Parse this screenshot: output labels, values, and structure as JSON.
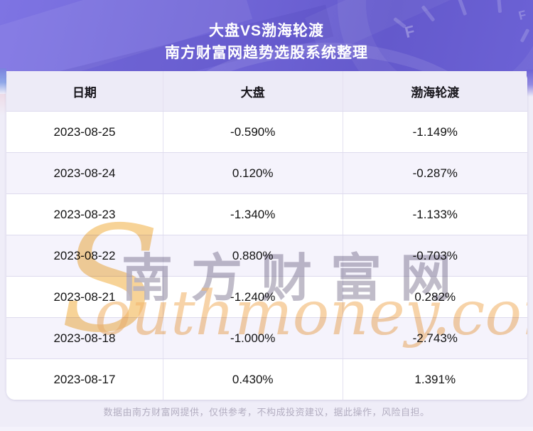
{
  "header": {
    "title_line1": "大盘VS渤海轮渡",
    "title_line2": "南方财富网趋势选股系统整理",
    "gauge_label": "F"
  },
  "table": {
    "columns": [
      "日期",
      "大盘",
      "渤海轮渡"
    ],
    "rows": [
      [
        "2023-08-25",
        "-0.590%",
        "-1.149%"
      ],
      [
        "2023-08-24",
        "0.120%",
        "-0.287%"
      ],
      [
        "2023-08-23",
        "-1.340%",
        "-1.133%"
      ],
      [
        "2023-08-22",
        "0.880%",
        "-0.703%"
      ],
      [
        "2023-08-21",
        "-1.240%",
        "0.282%"
      ],
      [
        "2023-08-18",
        "-1.000%",
        "-2.743%"
      ],
      [
        "2023-08-17",
        "0.430%",
        "1.391%"
      ]
    ]
  },
  "watermark": {
    "swoosh": "S",
    "brand_cn": "南方财富网",
    "brand_en": "outhmoney.com"
  },
  "footer": {
    "disclaimer": "数据由南方财富网提供，仅供参考，不构成投资建议，据此操作，风险自担。"
  },
  "colors": {
    "header_gradient_start": "#7e74e3",
    "header_gradient_end": "#6459cc",
    "table_header_bg": "#edebf7",
    "row_bg": "#ffffff",
    "row_alt_bg": "#f5f3fc",
    "row_border": "#dedbee",
    "page_bg": "#efedf8",
    "title_text": "#ffffff",
    "cell_text": "#121212",
    "disclaimer_text": "#b2adc0",
    "watermark_gray": "#b6b1c0",
    "watermark_orange": "#f2b66f",
    "watermark_yellow": "#f6c87e"
  },
  "chart_data": {
    "type": "table",
    "title": "大盘VS渤海轮渡",
    "subtitle": "南方财富网趋势选股系统整理",
    "columns": [
      "日期",
      "大盘",
      "渤海轮渡"
    ],
    "categories": [
      "2023-08-25",
      "2023-08-24",
      "2023-08-23",
      "2023-08-22",
      "2023-08-21",
      "2023-08-18",
      "2023-08-17"
    ],
    "series": [
      {
        "name": "大盘",
        "unit": "%",
        "values": [
          -0.59,
          0.12,
          -1.34,
          0.88,
          -1.24,
          -1.0,
          0.43
        ]
      },
      {
        "name": "渤海轮渡",
        "unit": "%",
        "values": [
          -1.149,
          -0.287,
          -1.133,
          -0.703,
          0.282,
          -2.743,
          1.391
        ]
      }
    ]
  }
}
